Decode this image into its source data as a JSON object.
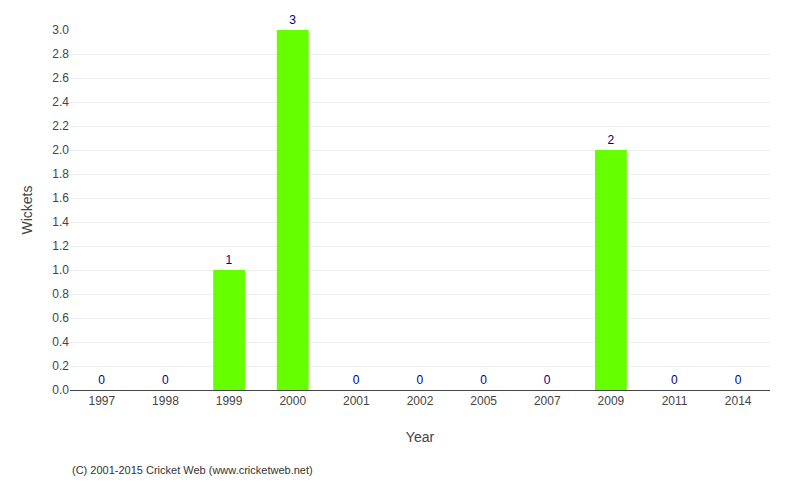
{
  "chart_data": {
    "type": "bar",
    "categories": [
      "1997",
      "1998",
      "1999",
      "2000",
      "2001",
      "2002",
      "2005",
      "2007",
      "2009",
      "2011",
      "2014"
    ],
    "values": [
      0,
      0,
      1,
      3,
      0,
      0,
      0,
      0,
      2,
      0,
      0
    ],
    "color": "#66ff00",
    "xlabel": "Year",
    "ylabel": "Wickets",
    "annotations": [
      "(C) 2001-2015 Cricket Web (www.cricketweb.net)"
    ],
    "ylim": [
      0,
      3.0
    ],
    "yticks": [
      {
        "value": 0.0,
        "label": "0.0"
      },
      0.2,
      0.4,
      0.6,
      0.8,
      {
        "value": 1.0,
        "label": "1.0"
      },
      1.2,
      1.4,
      1.6,
      1.8,
      {
        "value": 2.0,
        "label": "2.0"
      },
      2.2,
      2.4,
      2.6,
      2.8,
      {
        "value": 3.0,
        "label": "3.0"
      }
    ],
    "grid": true,
    "data_labels": true
  }
}
